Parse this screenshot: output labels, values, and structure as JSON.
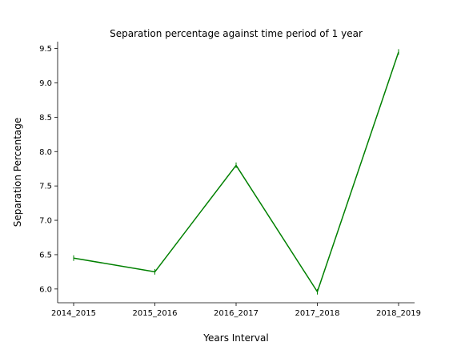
{
  "chart_data": {
    "type": "line",
    "title": "Separation percentage against time period of 1 year",
    "xlabel": "Years Interval",
    "ylabel": "Separation Percentage",
    "categories": [
      "2014_2015",
      "2015_2016",
      "2016_2017",
      "2017_2018",
      "2018_2019"
    ],
    "series": [
      {
        "values": [
          6.45,
          6.25,
          7.8,
          5.96,
          9.45
        ],
        "color": "#008000"
      }
    ],
    "yticks": [
      "6.0",
      "6.5",
      "7.0",
      "7.5",
      "8.0",
      "8.5",
      "9.0",
      "9.5"
    ],
    "ylim": [
      5.8,
      9.6
    ],
    "grid": false,
    "legend": "none"
  }
}
